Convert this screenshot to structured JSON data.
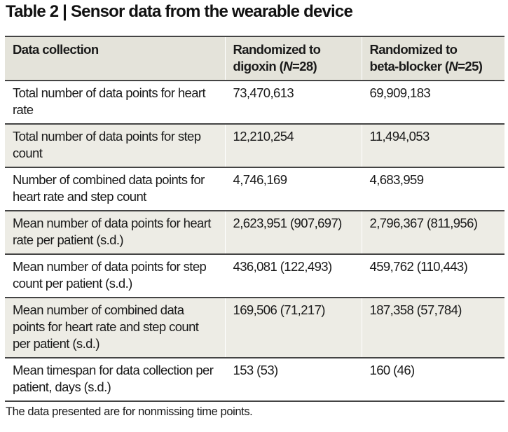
{
  "title": "Table 2 | Sensor data from the wearable device",
  "headers": {
    "col1": "Data collection",
    "col2_line1": "Randomized to",
    "col2_line2": "digoxin (",
    "col2_n": "N",
    "col2_val": "=28)",
    "col3_line1": "Randomized to",
    "col3_line2": "beta-blocker (",
    "col3_n": "N",
    "col3_val": "=25)"
  },
  "rows": [
    {
      "label": "Total number of data points for heart rate",
      "digoxin": "73,470,613",
      "beta_blocker": "69,909,183"
    },
    {
      "label": "Total number of data points for step count",
      "digoxin": "12,210,254",
      "beta_blocker": "11,494,053"
    },
    {
      "label": "Number of combined data points for heart rate and step count",
      "digoxin": "4,746,169",
      "beta_blocker": "4,683,959"
    },
    {
      "label": "Mean number of data points for heart rate per patient (s.d.)",
      "digoxin": "2,623,951 (907,697)",
      "beta_blocker": "2,796,367 (811,956)"
    },
    {
      "label": "Mean number of data points for step count per patient (s.d.)",
      "digoxin": "436,081 (122,493)",
      "beta_blocker": "459,762 (110,443)"
    },
    {
      "label": "Mean number of combined data points for heart rate and step count per patient (s.d.)",
      "digoxin": "169,506 (71,217)",
      "beta_blocker": "187,358 (57,784)"
    },
    {
      "label": "Mean timespan for data collection per patient, days (s.d.)",
      "digoxin": "153 (53)",
      "beta_blocker": "160 (46)"
    }
  ],
  "footnote": "The data presented are for nonmissing time points."
}
